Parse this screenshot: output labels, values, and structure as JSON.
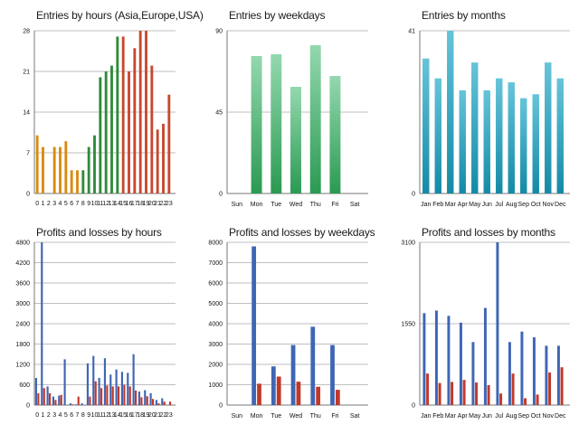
{
  "chart_data": [
    {
      "id": "hours",
      "type": "bar",
      "title": "Entries by hours (Asia,Europe,USA)",
      "categories": [
        "0",
        "1",
        "2",
        "3",
        "4",
        "5",
        "6",
        "7",
        "8",
        "9",
        "10",
        "11",
        "12",
        "13",
        "14",
        "15",
        "16",
        "17",
        "18",
        "19",
        "20",
        "21",
        "22",
        "23"
      ],
      "values": [
        10,
        8,
        0,
        8,
        8,
        9,
        4,
        4,
        4,
        8,
        10,
        20,
        21,
        22,
        27,
        27,
        21,
        25,
        28,
        28,
        22,
        11,
        12,
        17
      ],
      "sessions": [
        "Asia",
        "Asia",
        "Asia",
        "Asia",
        "Asia",
        "Asia",
        "Asia",
        "Asia",
        "Europe",
        "Europe",
        "Europe",
        "Europe",
        "Europe",
        "Europe",
        "Europe",
        "USA",
        "USA",
        "USA",
        "USA",
        "USA",
        "USA",
        "USA",
        "USA",
        "USA"
      ],
      "yticks": [
        0,
        7,
        14,
        21,
        28
      ],
      "ylim": [
        0,
        28
      ]
    },
    {
      "id": "weekdays",
      "type": "bar",
      "title": "Entries by weekdays",
      "categories": [
        "Sun",
        "Mon",
        "Tue",
        "Wed",
        "Thu",
        "Fri",
        "Sat"
      ],
      "values": [
        0,
        76,
        77,
        59,
        82,
        65,
        0
      ],
      "yticks": [
        0,
        45,
        90
      ],
      "ylim": [
        0,
        90
      ]
    },
    {
      "id": "months",
      "type": "bar",
      "title": "Entries by months",
      "categories": [
        "Jan",
        "Feb",
        "Mar",
        "Apr",
        "May",
        "Jun",
        "Jul",
        "Aug",
        "Sep",
        "Oct",
        "Nov",
        "Dec"
      ],
      "values": [
        34,
        29,
        41,
        26,
        33,
        26,
        29,
        28,
        24,
        25,
        33,
        29
      ],
      "yticks": [
        0,
        41
      ],
      "ylim": [
        0,
        41
      ]
    },
    {
      "id": "pl_hours",
      "type": "bar",
      "title": "Profits and losses by hours",
      "categories": [
        "0",
        "1",
        "2",
        "3",
        "4",
        "5",
        "6",
        "7",
        "8",
        "9",
        "10",
        "11",
        "12",
        "13",
        "14",
        "15",
        "16",
        "17",
        "18",
        "19",
        "20",
        "21",
        "22",
        "23"
      ],
      "series": [
        {
          "name": "Profits",
          "values": [
            800,
            4800,
            550,
            250,
            280,
            1350,
            50,
            20,
            50,
            1230,
            1450,
            800,
            1380,
            900,
            1050,
            980,
            950,
            1500,
            400,
            440,
            350,
            150,
            200,
            0
          ]
        },
        {
          "name": "Losses",
          "values": [
            350,
            500,
            350,
            150,
            300,
            0,
            20,
            250,
            0,
            250,
            700,
            500,
            580,
            550,
            550,
            600,
            550,
            430,
            230,
            260,
            180,
            50,
            100,
            100
          ]
        }
      ],
      "yticks": [
        0,
        600,
        1200,
        1800,
        2400,
        3000,
        3600,
        4200,
        4800
      ],
      "ylim": [
        0,
        4800
      ]
    },
    {
      "id": "pl_weekdays",
      "type": "bar",
      "title": "Profits and losses by weekdays",
      "categories": [
        "Sun",
        "Mon",
        "Tue",
        "Wed",
        "Thu",
        "Fri",
        "Sat"
      ],
      "series": [
        {
          "name": "Profits",
          "values": [
            0,
            7800,
            1900,
            2950,
            3850,
            2950,
            0
          ]
        },
        {
          "name": "Losses",
          "values": [
            0,
            1050,
            1400,
            1150,
            900,
            750,
            0
          ]
        }
      ],
      "yticks": [
        0,
        1000,
        2000,
        3000,
        4000,
        5000,
        6000,
        7000,
        8000
      ],
      "ylim": [
        0,
        8000
      ]
    },
    {
      "id": "pl_months",
      "type": "bar",
      "title": "Profits and losses by months",
      "categories": [
        "Jan",
        "Feb",
        "Mar",
        "Apr",
        "May",
        "Jun",
        "Jul",
        "Aug",
        "Sep",
        "Oct",
        "Nov",
        "Dec"
      ],
      "series": [
        {
          "name": "Profits",
          "values": [
            1750,
            1800,
            1700,
            1570,
            1200,
            1850,
            3100,
            1200,
            1400,
            1290,
            1130,
            1130
          ]
        },
        {
          "name": "Losses",
          "values": [
            600,
            420,
            440,
            480,
            430,
            380,
            220,
            600,
            130,
            200,
            620,
            720
          ]
        }
      ],
      "yticks": [
        0,
        1550,
        3100
      ],
      "ylim": [
        0,
        3100
      ]
    }
  ],
  "colors": {
    "asia": "#d98a0f",
    "europe": "#2e8b3a",
    "usa": "#c8472e",
    "weekday_top": "#94d8ae",
    "weekday_bottom": "#2a9a52",
    "month_top": "#66c4da",
    "month_bottom": "#138aa6",
    "profit": "#3f66b5",
    "loss": "#c0392b"
  }
}
